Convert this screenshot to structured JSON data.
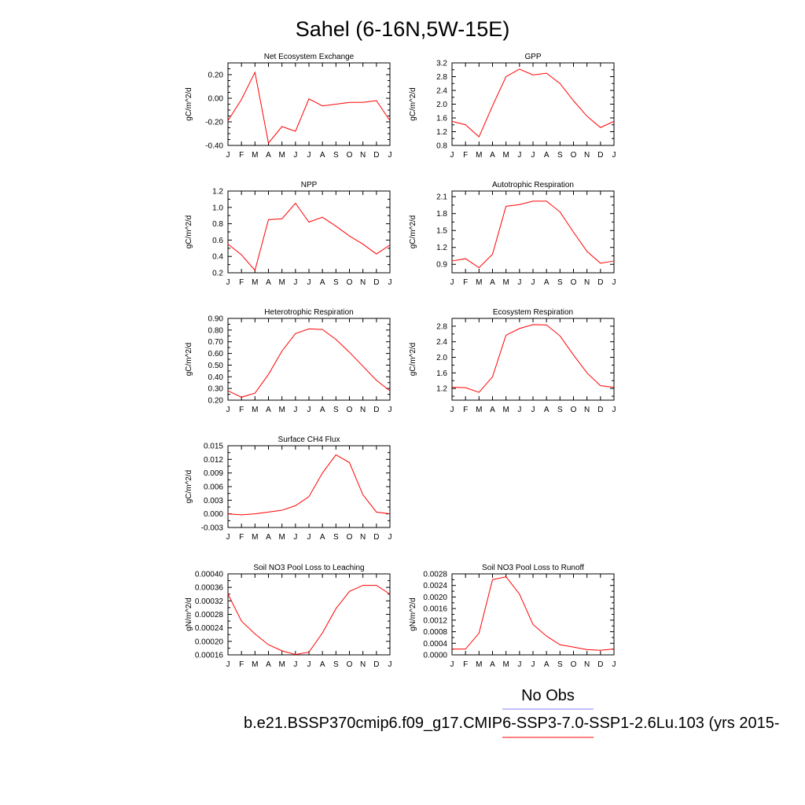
{
  "figure": {
    "title": "Sahel (6-16N,5W-15E)",
    "legend_obs": "No Obs",
    "legend_model": "b.e21.BSSP370cmip6.f09_g17.CMIP6-SSP3-7.0-SSP1-2.6Lu.103 (yrs 2015-",
    "colors": {
      "model": "#ff0000",
      "obs": "#8080ff"
    }
  },
  "chart_data": [
    {
      "type": "line",
      "title": "Net Ecosystem Exchange",
      "ylabel": "gC/m^2/d",
      "categories": [
        "J",
        "F",
        "M",
        "A",
        "M",
        "J",
        "J",
        "A",
        "S",
        "O",
        "N",
        "D",
        "J"
      ],
      "ylim": [
        -0.4,
        0.3
      ],
      "yticks": [
        -0.4,
        -0.2,
        0.0,
        0.2
      ],
      "ytick_labels": [
        "-0.40",
        "-0.20",
        "0.00",
        "0.20"
      ],
      "minor_step": 0.05,
      "series": [
        {
          "values": [
            -0.19,
            -0.01,
            0.22,
            -0.38,
            -0.24,
            -0.28,
            -0.005,
            -0.065,
            -0.05,
            -0.035,
            -0.035,
            -0.02,
            -0.19
          ]
        }
      ]
    },
    {
      "type": "line",
      "title": "GPP",
      "ylabel": "gC/m^2/d",
      "categories": [
        "J",
        "F",
        "M",
        "A",
        "M",
        "J",
        "J",
        "A",
        "S",
        "O",
        "N",
        "D",
        "J"
      ],
      "ylim": [
        0.8,
        3.2
      ],
      "yticks": [
        0.8,
        1.2,
        1.6,
        2.0,
        2.4,
        2.8,
        3.2
      ],
      "ytick_labels": [
        "0.8",
        "1.2",
        "1.6",
        "2.0",
        "2.4",
        "2.8",
        "3.2"
      ],
      "minor_step": 0.2,
      "series": [
        {
          "values": [
            1.5,
            1.4,
            1.05,
            1.95,
            2.8,
            3.02,
            2.85,
            2.9,
            2.6,
            2.1,
            1.65,
            1.32,
            1.5
          ]
        }
      ]
    },
    {
      "type": "line",
      "title": "NPP",
      "ylabel": "gC/m^2/d",
      "categories": [
        "J",
        "F",
        "M",
        "A",
        "M",
        "J",
        "J",
        "A",
        "S",
        "O",
        "N",
        "D",
        "J"
      ],
      "ylim": [
        0.2,
        1.2
      ],
      "yticks": [
        0.2,
        0.4,
        0.6,
        0.8,
        1.0,
        1.2
      ],
      "ytick_labels": [
        "0.2",
        "0.4",
        "0.6",
        "0.8",
        "1.0",
        "1.2"
      ],
      "minor_step": 0.1,
      "series": [
        {
          "values": [
            0.55,
            0.42,
            0.23,
            0.85,
            0.86,
            1.05,
            0.82,
            0.88,
            0.77,
            0.65,
            0.55,
            0.43,
            0.54
          ]
        }
      ]
    },
    {
      "type": "line",
      "title": "Autotrophic Respiration",
      "ylabel": "gC/m^2/d",
      "categories": [
        "J",
        "F",
        "M",
        "A",
        "M",
        "J",
        "J",
        "A",
        "S",
        "O",
        "N",
        "D",
        "J"
      ],
      "ylim": [
        0.75,
        2.2
      ],
      "yticks": [
        0.9,
        1.2,
        1.5,
        1.8,
        2.1
      ],
      "ytick_labels": [
        "0.9",
        "1.2",
        "1.5",
        "1.8",
        "2.1"
      ],
      "minor_step": 0.15,
      "series": [
        {
          "values": [
            0.96,
            1.0,
            0.84,
            1.08,
            1.93,
            1.96,
            2.02,
            2.02,
            1.83,
            1.47,
            1.13,
            0.92,
            0.96
          ]
        }
      ]
    },
    {
      "type": "line",
      "title": "Heterotrophic Respiration",
      "ylabel": "gC/m^2/d",
      "categories": [
        "J",
        "F",
        "M",
        "A",
        "M",
        "J",
        "J",
        "A",
        "S",
        "O",
        "N",
        "D",
        "J"
      ],
      "ylim": [
        0.2,
        0.9
      ],
      "yticks": [
        0.2,
        0.3,
        0.4,
        0.5,
        0.6,
        0.7,
        0.8,
        0.9
      ],
      "ytick_labels": [
        "0.20",
        "0.30",
        "0.40",
        "0.50",
        "0.60",
        "0.70",
        "0.80",
        "0.90"
      ],
      "minor_step": 0.05,
      "series": [
        {
          "values": [
            0.28,
            0.225,
            0.26,
            0.42,
            0.62,
            0.77,
            0.81,
            0.805,
            0.72,
            0.61,
            0.49,
            0.37,
            0.28
          ]
        }
      ]
    },
    {
      "type": "line",
      "title": "Ecosystem Respiration",
      "ylabel": "gC/m^2/d",
      "categories": [
        "J",
        "F",
        "M",
        "A",
        "M",
        "J",
        "J",
        "A",
        "S",
        "O",
        "N",
        "D",
        "J"
      ],
      "ylim": [
        0.9,
        3.0
      ],
      "yticks": [
        1.2,
        1.6,
        2.0,
        2.4,
        2.8
      ],
      "ytick_labels": [
        "1.2",
        "1.6",
        "2.0",
        "2.4",
        "2.8"
      ],
      "minor_step": 0.2,
      "series": [
        {
          "values": [
            1.23,
            1.22,
            1.1,
            1.5,
            2.57,
            2.74,
            2.84,
            2.83,
            2.55,
            2.06,
            1.6,
            1.27,
            1.23
          ]
        }
      ]
    },
    {
      "type": "line",
      "title": "Surface CH4 Flux",
      "ylabel": "gC/m^2/d",
      "categories": [
        "J",
        "F",
        "M",
        "A",
        "M",
        "J",
        "J",
        "A",
        "S",
        "O",
        "N",
        "D",
        "J"
      ],
      "ylim": [
        -0.003,
        0.015
      ],
      "yticks": [
        -0.003,
        0.0,
        0.003,
        0.006,
        0.009,
        0.012,
        0.015
      ],
      "ytick_labels": [
        "-0.003",
        "0.000",
        "0.003",
        "0.006",
        "0.009",
        "0.012",
        "0.015"
      ],
      "minor_step": 0.0015,
      "series": [
        {
          "values": [
            0.0,
            -0.0002,
            0.0,
            0.0004,
            0.0008,
            0.0018,
            0.0038,
            0.009,
            0.013,
            0.0113,
            0.0042,
            0.0004,
            0.0
          ]
        }
      ]
    },
    {
      "type": "line",
      "title": "Soil NO3 Pool Loss to Leaching",
      "ylabel": "gN/m^2/d",
      "categories": [
        "J",
        "F",
        "M",
        "A",
        "M",
        "J",
        "J",
        "A",
        "S",
        "O",
        "N",
        "D",
        "J"
      ],
      "ylim": [
        0.00016,
        0.0004
      ],
      "yticks": [
        0.00016,
        0.0002,
        0.00024,
        0.00028,
        0.00032,
        0.00036,
        0.0004
      ],
      "ytick_labels": [
        "0.00016",
        "0.00020",
        "0.00024",
        "0.00028",
        "0.00032",
        "0.00036",
        "0.00040"
      ],
      "minor_step": 2e-05,
      "series": [
        {
          "values": [
            0.00034,
            0.00026,
            0.000222,
            0.00019,
            0.000172,
            0.000161,
            0.000168,
            0.000225,
            0.000297,
            0.000348,
            0.000366,
            0.000366,
            0.00034
          ]
        }
      ]
    },
    {
      "type": "line",
      "title": "Soil NO3 Pool Loss to Runoff",
      "ylabel": "gN/m^2/d",
      "categories": [
        "J",
        "F",
        "M",
        "A",
        "M",
        "J",
        "J",
        "A",
        "S",
        "O",
        "N",
        "D",
        "J"
      ],
      "ylim": [
        0.0,
        0.0028
      ],
      "yticks": [
        0.0,
        0.0004,
        0.0008,
        0.0012,
        0.0016,
        0.002,
        0.0024,
        0.0028
      ],
      "ytick_labels": [
        "0.0000",
        "0.0004",
        "0.0008",
        "0.0012",
        "0.0016",
        "0.0020",
        "0.0024",
        "0.0028"
      ],
      "minor_step": 0.0002,
      "series": [
        {
          "values": [
            0.0002,
            0.0002,
            0.00075,
            0.0026,
            0.0027,
            0.0021,
            0.00105,
            0.00065,
            0.00035,
            0.00027,
            0.00018,
            0.00016,
            0.0002
          ]
        }
      ]
    }
  ]
}
